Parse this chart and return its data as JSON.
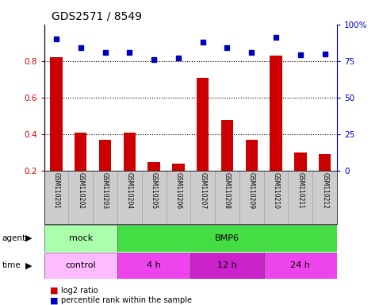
{
  "title": "GDS2571 / 8549",
  "samples": [
    "GSM110201",
    "GSM110202",
    "GSM110203",
    "GSM110204",
    "GSM110205",
    "GSM110206",
    "GSM110207",
    "GSM110208",
    "GSM110209",
    "GSM110210",
    "GSM110211",
    "GSM110212"
  ],
  "log2_ratio": [
    0.82,
    0.41,
    0.37,
    0.41,
    0.25,
    0.24,
    0.71,
    0.48,
    0.37,
    0.83,
    0.3,
    0.29
  ],
  "percentile": [
    90,
    84,
    81,
    81,
    76,
    77,
    88,
    84,
    81,
    91,
    79,
    80
  ],
  "bar_color": "#cc0000",
  "dot_color": "#0000bb",
  "bar_bottom": 0.2,
  "ylim_left": [
    0.2,
    1.0
  ],
  "ylim_right": [
    0,
    100
  ],
  "yticks_left": [
    0.2,
    0.4,
    0.6,
    0.8
  ],
  "ytick_labels_left": [
    "0.2",
    "0.4",
    "0.6",
    "0.8"
  ],
  "yticks_right": [
    0,
    25,
    50,
    75,
    100
  ],
  "ytick_labels_right": [
    "0",
    "25",
    "50",
    "75",
    "100%"
  ],
  "dotted_lines": [
    0.8,
    0.6,
    0.4
  ],
  "agent_groups": [
    {
      "label": "mock",
      "start": 0,
      "end": 3,
      "color": "#aaffaa"
    },
    {
      "label": "BMP6",
      "start": 3,
      "end": 12,
      "color": "#44dd44"
    }
  ],
  "time_groups": [
    {
      "label": "control",
      "start": 0,
      "end": 3,
      "color": "#ffbbff"
    },
    {
      "label": "4 h",
      "start": 3,
      "end": 6,
      "color": "#ee44ee"
    },
    {
      "label": "12 h",
      "start": 6,
      "end": 9,
      "color": "#cc22cc"
    },
    {
      "label": "24 h",
      "start": 9,
      "end": 12,
      "color": "#ee44ee"
    }
  ],
  "legend_red": "log2 ratio",
  "legend_blue": "percentile rank within the sample",
  "bg_color": "#ffffff",
  "sample_box_color": "#cccccc"
}
